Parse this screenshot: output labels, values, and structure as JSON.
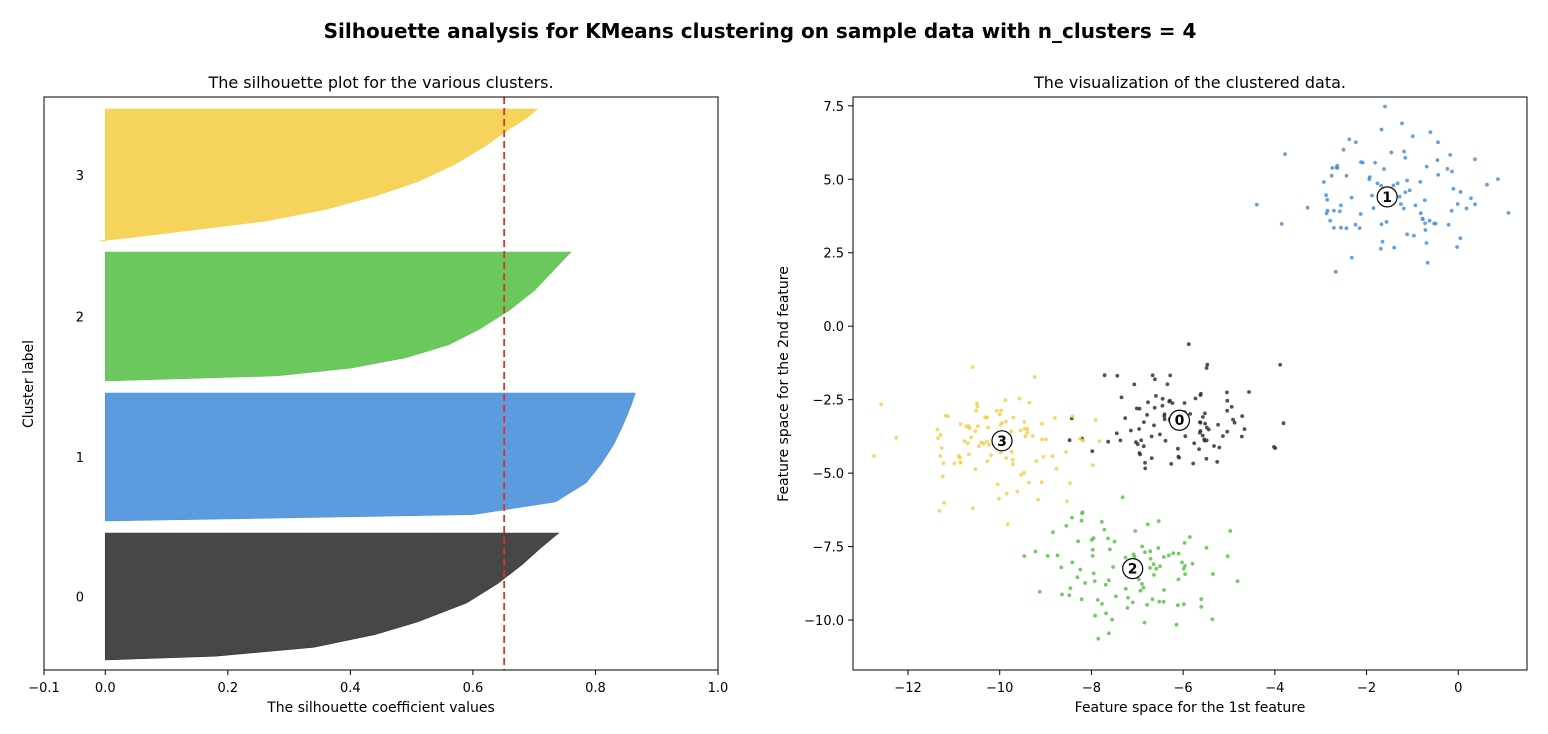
{
  "figure": {
    "title": "Silhouette analysis for KMeans clustering on sample data with n_clusters = 4"
  },
  "chart_data": [
    {
      "type": "area",
      "title": "The silhouette plot for the various clusters.",
      "xlabel": "The silhouette coefficient values",
      "ylabel": "Cluster label",
      "xlim": [
        -0.1,
        1.0
      ],
      "xticks": [
        -0.1,
        0.0,
        0.2,
        0.4,
        0.6,
        0.8,
        1.0
      ],
      "xtick_labels": [
        "−0.1",
        "0.0",
        "0.2",
        "0.4",
        "0.6",
        "0.8",
        "1.0"
      ],
      "average_silhouette_score": 0.651,
      "average_line_color": "#e0302a",
      "clusters": [
        {
          "label": "0",
          "color": "#333333",
          "max": 0.74,
          "min": -0.001,
          "profile": [
            [
              0,
              0.74
            ],
            [
              0.04,
              0.73
            ],
            [
              0.12,
              0.71
            ],
            [
              0.25,
              0.68
            ],
            [
              0.4,
              0.64
            ],
            [
              0.55,
              0.59
            ],
            [
              0.7,
              0.51
            ],
            [
              0.8,
              0.44
            ],
            [
              0.9,
              0.34
            ],
            [
              0.97,
              0.18
            ],
            [
              1,
              0.0
            ]
          ]
        },
        {
          "label": "1",
          "color": "#4a90d9",
          "max": 0.865,
          "min": 0.0,
          "profile": [
            [
              0,
              0.865
            ],
            [
              0.1,
              0.858
            ],
            [
              0.25,
              0.845
            ],
            [
              0.4,
              0.83
            ],
            [
              0.55,
              0.81
            ],
            [
              0.7,
              0.785
            ],
            [
              0.85,
              0.735
            ],
            [
              0.95,
              0.6
            ],
            [
              1,
              0.0
            ]
          ]
        },
        {
          "label": "2",
          "color": "#5bc24a",
          "max": 0.76,
          "min": 0.0,
          "profile": [
            [
              0,
              0.76
            ],
            [
              0.05,
              0.75
            ],
            [
              0.15,
              0.73
            ],
            [
              0.3,
              0.7
            ],
            [
              0.45,
              0.66
            ],
            [
              0.6,
              0.61
            ],
            [
              0.72,
              0.56
            ],
            [
              0.82,
              0.49
            ],
            [
              0.9,
              0.4
            ],
            [
              0.96,
              0.28
            ],
            [
              1,
              0.0
            ]
          ]
        },
        {
          "label": "3",
          "color": "#f5cf4a",
          "max": 0.705,
          "min": -0.01,
          "profile": [
            [
              0,
              0.705
            ],
            [
              0.06,
              0.69
            ],
            [
              0.15,
              0.66
            ],
            [
              0.28,
              0.62
            ],
            [
              0.42,
              0.57
            ],
            [
              0.55,
              0.51
            ],
            [
              0.66,
              0.44
            ],
            [
              0.76,
              0.36
            ],
            [
              0.85,
              0.26
            ],
            [
              0.93,
              0.12
            ],
            [
              0.98,
              0.03
            ],
            [
              1,
              -0.01
            ]
          ]
        }
      ]
    },
    {
      "type": "scatter",
      "title": "The visualization of the clustered data.",
      "xlabel": "Feature space for the 1st feature",
      "ylabel": "Feature space for the 2nd feature",
      "xlim": [
        -13.2,
        1.5
      ],
      "ylim": [
        -11.7,
        7.8
      ],
      "xticks": [
        -12,
        -10,
        -8,
        -6,
        -4,
        -2,
        0
      ],
      "xtick_labels": [
        "−12",
        "−10",
        "−8",
        "−6",
        "−4",
        "−2",
        "0"
      ],
      "yticks": [
        -10.0,
        -7.5,
        -5.0,
        -2.5,
        0.0,
        2.5,
        5.0,
        7.5
      ],
      "ytick_labels": [
        "−10.0",
        "−7.5",
        "−5.0",
        "−2.5",
        "0.0",
        "2.5",
        "5.0",
        "7.5"
      ],
      "clusters": [
        {
          "label": "0",
          "color": "#333333",
          "center": [
            -6.08,
            -3.2
          ],
          "spread": [
            0.95,
            0.95
          ],
          "n": 100,
          "seed": 11
        },
        {
          "label": "1",
          "color": "#4a90d9",
          "center": [
            -1.55,
            4.4
          ],
          "spread": [
            1.05,
            1.0
          ],
          "n": 100,
          "seed": 23
        },
        {
          "label": "2",
          "color": "#5bc24a",
          "center": [
            -7.1,
            -8.25
          ],
          "spread": [
            1.0,
            1.0
          ],
          "n": 100,
          "seed": 37
        },
        {
          "label": "3",
          "color": "#f5cf4a",
          "center": [
            -9.95,
            -3.9
          ],
          "spread": [
            1.05,
            1.0
          ],
          "n": 100,
          "seed": 53
        }
      ]
    }
  ]
}
